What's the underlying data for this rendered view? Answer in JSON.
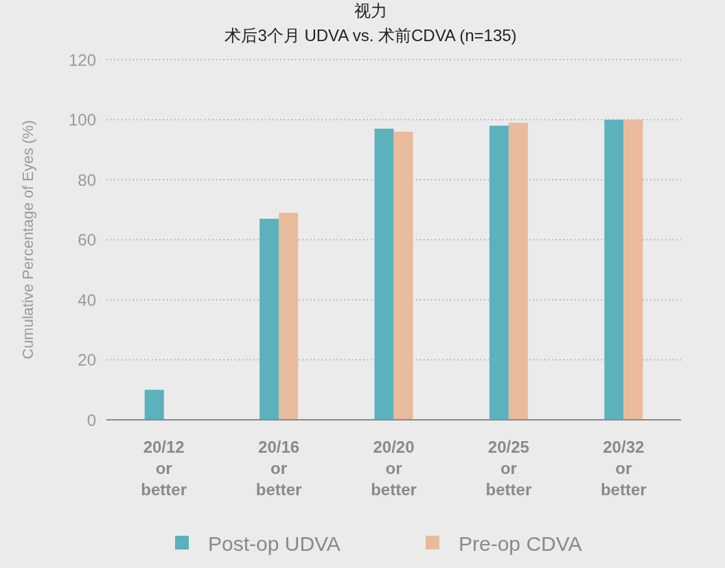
{
  "chart_data": {
    "type": "bar",
    "title": "视力",
    "subtitle": "术后3个月 UDVA vs. 术前CDVA (n=135)",
    "ylabel": "Cumulative Percentage of Eyes (%)",
    "categories": [
      "20/12\nor\nbetter",
      "20/16\nor\nbetter",
      "20/20\nor\nbetter",
      "20/25\nor\nbetter",
      "20/32\nor\nbetter"
    ],
    "series": [
      {
        "name": "Post-op UDVA",
        "color": "#5bb1bc",
        "values": [
          10,
          67,
          97,
          98,
          100
        ]
      },
      {
        "name": "Pre-op CDVA",
        "color": "#e8bb9c",
        "values": [
          0,
          69,
          96,
          99,
          100
        ]
      }
    ],
    "ylim": [
      0,
      120
    ],
    "yticks": [
      0,
      20,
      40,
      60,
      80,
      100,
      120
    ],
    "grid": "y",
    "legend": "bottom"
  }
}
